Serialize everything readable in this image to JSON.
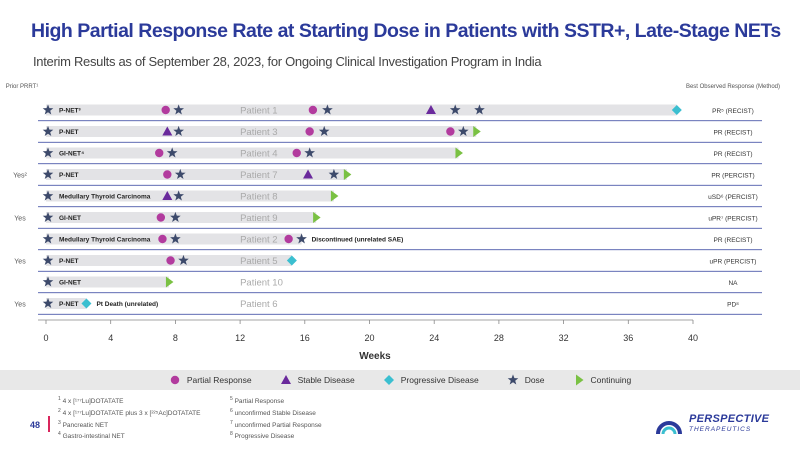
{
  "title": "High Partial Response Rate at Starting Dose in Patients with SSTR+, Late-Stage NETs",
  "subtitle": "Interim Results as of September 28, 2023, for Ongoing Clinical Investigation Program in India",
  "colors": {
    "title": "#2b3a9a",
    "response": "#b23b9e",
    "stable": "#6a2a9c",
    "progressive": "#3bbfd0",
    "dose": "#3d4a6b",
    "continuing": "#7ac143",
    "bar": "#e3e3e6"
  },
  "header": {
    "prior_prrt": "Prior PRRT¹",
    "best_response": "Best Observed Response  (Method)"
  },
  "chart_data": {
    "type": "swimmer",
    "xlabel": "Weeks",
    "xlim": [
      0,
      40
    ],
    "xticks": [
      "0",
      "4",
      "8",
      "12",
      "16",
      "20",
      "24",
      "28",
      "32",
      "36",
      "40"
    ],
    "rows": [
      {
        "prior": "",
        "tumor": "P-NET³",
        "patient": "Patient 1",
        "duration": 39,
        "response": "PR⁵ (RECIST)",
        "events": [
          {
            "type": "dose",
            "week": 0
          },
          {
            "type": "pr",
            "week": 7.4
          },
          {
            "type": "dose",
            "week": 8.2
          },
          {
            "type": "pr",
            "week": 16.5
          },
          {
            "type": "dose",
            "week": 17.4
          },
          {
            "type": "sd",
            "week": 23.8
          },
          {
            "type": "dose",
            "week": 25.3
          },
          {
            "type": "dose",
            "week": 26.8
          },
          {
            "type": "pd",
            "week": 39
          }
        ]
      },
      {
        "prior": "",
        "tumor": "P-NET",
        "patient": "Patient 3",
        "duration": 26.6,
        "response": "PR (RECIST)",
        "events": [
          {
            "type": "dose",
            "week": 0
          },
          {
            "type": "sd",
            "week": 7.5
          },
          {
            "type": "dose",
            "week": 8.2
          },
          {
            "type": "pr",
            "week": 16.3
          },
          {
            "type": "dose",
            "week": 17.2
          },
          {
            "type": "pr",
            "week": 25
          },
          {
            "type": "dose",
            "week": 25.8
          },
          {
            "type": "cont",
            "week": 26.6
          }
        ]
      },
      {
        "prior": "",
        "tumor": "GI-NET⁴",
        "patient": "Patient 4",
        "duration": 25.5,
        "response": "PR (RECIST)",
        "events": [
          {
            "type": "dose",
            "week": 0
          },
          {
            "type": "pr",
            "week": 7
          },
          {
            "type": "dose",
            "week": 7.8
          },
          {
            "type": "pr",
            "week": 15.5
          },
          {
            "type": "dose",
            "week": 16.3
          },
          {
            "type": "cont",
            "week": 25.5
          }
        ]
      },
      {
        "prior": "Yes²",
        "tumor": "P-NET",
        "patient": "Patient 7",
        "duration": 18.6,
        "response": "PR (PERCIST)",
        "events": [
          {
            "type": "dose",
            "week": 0
          },
          {
            "type": "pr",
            "week": 7.5
          },
          {
            "type": "dose",
            "week": 8.3
          },
          {
            "type": "sd",
            "week": 16.2
          },
          {
            "type": "dose",
            "week": 17.8
          },
          {
            "type": "cont",
            "week": 18.6
          }
        ]
      },
      {
        "prior": "",
        "tumor": "Medullary Thyroid Carcinoma",
        "patient": "Patient 8",
        "duration": 17.8,
        "response": "uSD⁶ (PERCIST)",
        "events": [
          {
            "type": "dose",
            "week": 0
          },
          {
            "type": "sd",
            "week": 7.5
          },
          {
            "type": "dose",
            "week": 8.2
          },
          {
            "type": "cont",
            "week": 17.8
          }
        ]
      },
      {
        "prior": "Yes",
        "tumor": "GI-NET",
        "patient": "Patient 9",
        "duration": 16.7,
        "response": "uPR⁷ (PERCIST)",
        "events": [
          {
            "type": "dose",
            "week": 0
          },
          {
            "type": "pr",
            "week": 7.1
          },
          {
            "type": "dose",
            "week": 8
          },
          {
            "type": "cont",
            "week": 16.7
          }
        ]
      },
      {
        "prior": "",
        "tumor": "Medullary Thyroid Carcinoma",
        "patient": "Patient 2",
        "duration": 15.8,
        "response": "PR (RECIST)",
        "events": [
          {
            "type": "dose",
            "week": 0
          },
          {
            "type": "pr",
            "week": 7.2
          },
          {
            "type": "dose",
            "week": 8
          },
          {
            "type": "pr",
            "week": 15
          },
          {
            "type": "dose",
            "week": 15.8
          }
        ],
        "note": "Discontinued (unrelated SAE)"
      },
      {
        "prior": "Yes",
        "tumor": "P-NET",
        "patient": "Patient 5",
        "duration": 15.2,
        "response": "uPR (PERCIST)",
        "events": [
          {
            "type": "dose",
            "week": 0
          },
          {
            "type": "pr",
            "week": 7.7
          },
          {
            "type": "dose",
            "week": 8.5
          },
          {
            "type": "pd",
            "week": 15.2
          }
        ]
      },
      {
        "prior": "",
        "tumor": "GI-NET",
        "patient": "Patient 10",
        "duration": 7.6,
        "response": "NA",
        "events": [
          {
            "type": "dose",
            "week": 0
          },
          {
            "type": "cont",
            "week": 7.6
          }
        ]
      },
      {
        "prior": "Yes",
        "tumor": "P-NET",
        "patient": "Patient 6",
        "duration": 2.5,
        "response": "PD⁸",
        "events": [
          {
            "type": "dose",
            "week": 0
          },
          {
            "type": "pd",
            "week": 2.5
          }
        ],
        "note": "Pt Death (unrelated)"
      }
    ]
  },
  "legend": [
    {
      "type": "pr",
      "label": "Partial Response"
    },
    {
      "type": "sd",
      "label": "Stable Disease"
    },
    {
      "type": "pd",
      "label": "Progressive Disease"
    },
    {
      "type": "dose",
      "label": "Dose"
    },
    {
      "type": "cont",
      "label": "Continuing"
    }
  ],
  "footnotes_left": [
    {
      "num": "1",
      "text": " 4 x [¹⁷⁷Lu]DOTATATE"
    },
    {
      "num": "2",
      "text": " 4 x [¹⁷⁷Lu]DOTATATE plus 3 x [²²⁵Ac]DOTATATE"
    },
    {
      "num": "3",
      "text": " Pancreatic NET"
    },
    {
      "num": "4",
      "text": " Gastro-intestinal NET"
    }
  ],
  "footnotes_right": [
    {
      "num": "5",
      "text": " Partial Response"
    },
    {
      "num": "6",
      "text": " unconfirmed Stable Disease"
    },
    {
      "num": "7",
      "text": " unconfirmed Partial Response"
    },
    {
      "num": "8",
      "text": " Progressive Disease"
    }
  ],
  "page_number": "48",
  "logo": {
    "name": "PERSPECTIVE",
    "sub": "THERAPEUTICS"
  }
}
